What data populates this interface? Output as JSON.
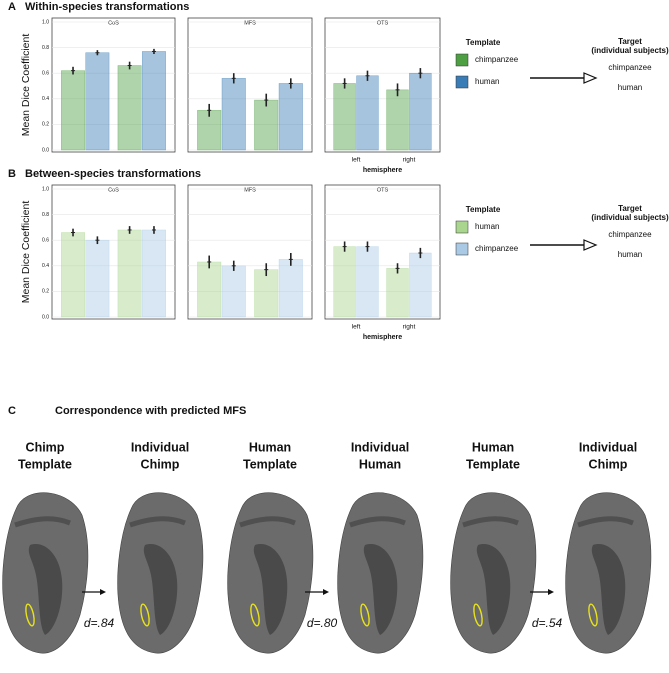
{
  "chart_data": [
    {
      "type": "bar",
      "title": "CoS",
      "ylabel": "Mean Dice Coefficient",
      "categories": [
        null,
        null
      ],
      "ylim": [
        0,
        1
      ],
      "yticks": [
        {
          "value": 0,
          "label": "0.0"
        },
        {
          "value": 0.2,
          "label": "0.2"
        },
        {
          "value": 0.4,
          "label": "0.4"
        },
        {
          "value": 0.6,
          "label": "0.6"
        },
        {
          "value": 0.8,
          "label": "0.8"
        },
        {
          "value": 1,
          "label": "1.0"
        }
      ],
      "grid": true,
      "series": [
        {
          "color": "#4e9f44",
          "values": [
            0.62,
            0.66
          ],
          "errors": [
            0.03,
            0.03
          ]
        },
        {
          "color": "#3a7db6",
          "values": [
            0.76,
            0.77
          ],
          "errors": [
            0.02,
            0.02
          ]
        }
      ]
    },
    {
      "type": "bar",
      "title": "MFS",
      "categories": [
        null,
        null
      ],
      "ylim": [
        0,
        1
      ],
      "yticks": [
        0,
        0.2,
        0.4,
        0.6,
        0.8,
        1
      ],
      "grid": true,
      "series": [
        {
          "color": "#4e9f44",
          "values": [
            0.31,
            0.39
          ],
          "errors": [
            0.05,
            0.05
          ]
        },
        {
          "color": "#3a7db6",
          "values": [
            0.56,
            0.52
          ],
          "errors": [
            0.04,
            0.04
          ]
        }
      ]
    },
    {
      "type": "bar",
      "title": "OTS",
      "xlabel": "hemisphere",
      "categories": [
        "left",
        "right"
      ],
      "ylim": [
        0,
        1
      ],
      "yticks": [
        0,
        0.2,
        0.4,
        0.6,
        0.8,
        1
      ],
      "grid": true,
      "series": [
        {
          "name": "chimpanzee",
          "color": "#4e9f44",
          "values": [
            0.52,
            0.47
          ],
          "errors": [
            0.04,
            0.05
          ]
        },
        {
          "name": "human",
          "color": "#3a7db6",
          "values": [
            0.58,
            0.6
          ],
          "errors": [
            0.04,
            0.04
          ]
        }
      ]
    },
    {
      "type": "bar",
      "title": "CoS",
      "ylabel": "Mean Dice Coefficient",
      "categories": [
        null,
        null
      ],
      "ylim": [
        0,
        1
      ],
      "yticks": [
        {
          "value": 0,
          "label": "0.0"
        },
        {
          "value": 0.2,
          "label": "0.2"
        },
        {
          "value": 0.4,
          "label": "0.4"
        },
        {
          "value": 0.6,
          "label": "0.6"
        },
        {
          "value": 0.8,
          "label": "0.8"
        },
        {
          "value": 1,
          "label": "1.0"
        }
      ],
      "grid": true,
      "series": [
        {
          "color": "#a9d58f",
          "values": [
            0.66,
            0.68
          ],
          "errors": [
            0.03,
            0.03
          ]
        },
        {
          "color": "#a9c9e4",
          "values": [
            0.6,
            0.68
          ],
          "errors": [
            0.03,
            0.03
          ]
        }
      ]
    },
    {
      "type": "bar",
      "title": "MFS",
      "categories": [
        null,
        null
      ],
      "ylim": [
        0,
        1
      ],
      "yticks": [
        0,
        0.2,
        0.4,
        0.6,
        0.8,
        1
      ],
      "grid": true,
      "series": [
        {
          "color": "#a9d58f",
          "values": [
            0.43,
            0.37
          ],
          "errors": [
            0.05,
            0.05
          ]
        },
        {
          "color": "#a9c9e4",
          "values": [
            0.4,
            0.45
          ],
          "errors": [
            0.04,
            0.05
          ]
        }
      ]
    },
    {
      "type": "bar",
      "title": "OTS",
      "xlabel": "hemisphere",
      "categories": [
        "left",
        "right"
      ],
      "ylim": [
        0,
        1
      ],
      "yticks": [
        0,
        0.2,
        0.4,
        0.6,
        0.8,
        1
      ],
      "grid": true,
      "series": [
        {
          "name": "human",
          "color": "#a9d58f",
          "values": [
            0.55,
            0.38
          ],
          "errors": [
            0.04,
            0.04
          ]
        },
        {
          "name": "chimpanzee",
          "color": "#a9c9e4",
          "values": [
            0.55,
            0.5
          ],
          "errors": [
            0.04,
            0.04
          ]
        }
      ]
    }
  ],
  "panels": [
    {
      "label": "A",
      "title": "Within-species transformations",
      "legend_title": "Template",
      "target_title": "Target",
      "target_subtitle": "(individual subjects)",
      "targets": [
        "chimpanzee",
        "human"
      ]
    },
    {
      "label": "B",
      "title": "Between-species transformations",
      "legend_title": "Template",
      "target_title": "Target",
      "target_subtitle": "(individual subjects)",
      "targets": [
        "chimpanzee",
        "human"
      ]
    },
    {
      "label": "C",
      "title": "Correspondence with predicted MFS",
      "items": [
        [
          "Chimp",
          "Template"
        ],
        [
          "Individual",
          "Chimp"
        ],
        [
          "Human",
          "Template"
        ],
        [
          "Individual",
          "Human"
        ],
        [
          "Human",
          "Template"
        ],
        [
          "Individual",
          "Chimp"
        ]
      ],
      "scores": [
        "d=.84",
        "d=.80",
        "d=.54"
      ]
    }
  ]
}
